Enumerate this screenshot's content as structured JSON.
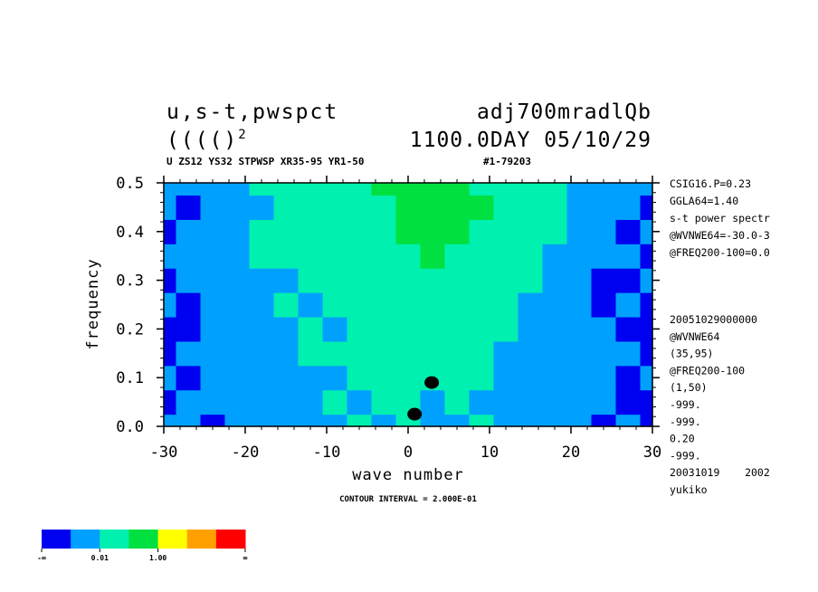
{
  "header": {
    "title_left_1": "u,s-t,pwspct",
    "title_right_1": "adj700mradlQb",
    "title_left_2": "(((()",
    "title_left_2_sup": "2",
    "title_right_2": "1100.0DAY 05/10/29",
    "subtitle_left": "U ZS12 YS32 STPWSP XR35-95 YR1-50",
    "subtitle_right": "#1-79203"
  },
  "side_info": {
    "top": [
      "CSIG16.P=0.23",
      "GGLA64=1.40",
      "s-t power spectr",
      "@WVNWE64=-30.0-3",
      "@FREQ200-100=0.0"
    ],
    "bottom": [
      "20051029000000",
      "@WVNWE64",
      "(35,95)",
      "@FREQ200-100",
      "(1,50)",
      "-999.",
      "-999.",
      "0.20",
      "-999.",
      "20031019    2002",
      "yukiko"
    ]
  },
  "footer": {
    "contour_interval": "CONTOUR INTERVAL = 2.000E-01"
  },
  "colorbar": {
    "colors": [
      "#0000f0",
      "#00a0ff",
      "#00f0b0",
      "#00e040",
      "#ffff00",
      "#ffa000",
      "#ff0000"
    ],
    "labels": [
      "-∞",
      "0.01",
      "1.00",
      "∞"
    ]
  },
  "chart_data": {
    "type": "heatmap",
    "xlabel": "wave number",
    "ylabel": "frequency",
    "xlim": [
      -30,
      30
    ],
    "ylim": [
      0.0,
      0.5
    ],
    "x_ticks": [
      -30,
      -20,
      -10,
      0,
      10,
      20,
      30
    ],
    "x_tick_labels": [
      "-30",
      "-20",
      "-10",
      "0",
      "10",
      "20",
      "30"
    ],
    "y_ticks": [
      0.0,
      0.1,
      0.2,
      0.3,
      0.4,
      0.5
    ],
    "y_tick_labels": [
      "0.0",
      "0.1",
      "0.2",
      "0.3",
      "0.4",
      "0.5"
    ],
    "grid_x": [
      -30,
      -27,
      -24,
      -21,
      -18,
      -15,
      -12,
      -9,
      -6,
      -3,
      0,
      3,
      6,
      9,
      12,
      15,
      18,
      21,
      24,
      27,
      30
    ],
    "grid_y": [
      0.0,
      0.05,
      0.1,
      0.15,
      0.2,
      0.25,
      0.3,
      0.35,
      0.4,
      0.45,
      0.5
    ],
    "levels": [
      [
        1,
        1,
        0,
        1,
        1,
        1,
        1,
        1,
        2,
        1,
        2,
        1,
        1,
        2,
        1,
        1,
        1,
        1,
        0,
        1,
        0
      ],
      [
        0,
        1,
        1,
        1,
        1,
        1,
        1,
        2,
        1,
        2,
        2,
        1,
        2,
        1,
        1,
        1,
        1,
        1,
        1,
        0,
        0
      ],
      [
        1,
        0,
        1,
        1,
        1,
        1,
        1,
        1,
        2,
        2,
        2,
        2,
        2,
        2,
        1,
        1,
        1,
        1,
        1,
        0,
        1
      ],
      [
        0,
        1,
        1,
        1,
        1,
        1,
        2,
        2,
        2,
        2,
        2,
        2,
        2,
        2,
        1,
        1,
        1,
        1,
        1,
        1,
        0
      ],
      [
        0,
        0,
        1,
        1,
        1,
        1,
        2,
        1,
        2,
        2,
        2,
        2,
        2,
        2,
        2,
        1,
        1,
        1,
        1,
        0,
        0
      ],
      [
        1,
        0,
        1,
        1,
        1,
        2,
        1,
        2,
        2,
        2,
        2,
        2,
        2,
        2,
        2,
        1,
        1,
        1,
        0,
        1,
        0
      ],
      [
        0,
        1,
        1,
        1,
        1,
        1,
        2,
        2,
        2,
        2,
        2,
        2,
        2,
        2,
        2,
        2,
        1,
        1,
        0,
        0,
        1
      ],
      [
        1,
        1,
        1,
        1,
        2,
        2,
        2,
        2,
        2,
        2,
        2,
        3,
        2,
        2,
        2,
        2,
        1,
        1,
        1,
        1,
        0
      ],
      [
        0,
        1,
        1,
        1,
        2,
        2,
        2,
        2,
        2,
        2,
        3,
        3,
        3,
        2,
        2,
        2,
        2,
        1,
        1,
        0,
        1
      ],
      [
        1,
        0,
        1,
        1,
        1,
        2,
        2,
        2,
        2,
        2,
        3,
        3,
        3,
        3,
        2,
        2,
        2,
        1,
        1,
        1,
        0
      ],
      [
        1,
        1,
        1,
        1,
        2,
        2,
        2,
        2,
        2,
        3,
        3,
        3,
        3,
        2,
        2,
        2,
        2,
        1,
        1,
        1,
        1
      ]
    ],
    "dark_blobs": [
      {
        "x": 0.8,
        "y": 0.025
      },
      {
        "x": 2.9,
        "y": 0.09
      }
    ]
  }
}
